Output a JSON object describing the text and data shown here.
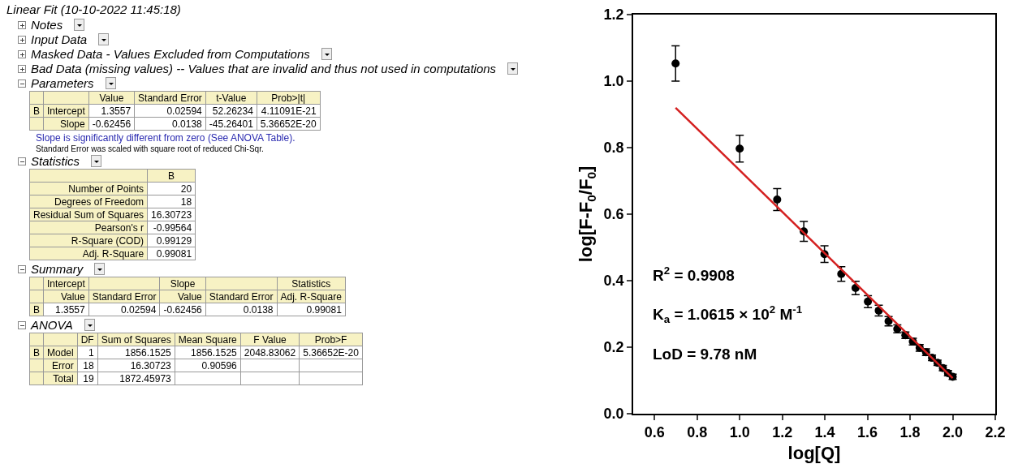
{
  "chart_data": [
    {
      "type": "other",
      "title": "Linear Fit (10-10-2022 11:45:18)",
      "annotations": [
        "Notes",
        "Input Data",
        "Masked Data - Values Excluded from Computations",
        "Bad Data (missing values) -- Values that are invalid and thus not used in computations",
        "Parameters",
        "\t\tValue\tStandard Error\tt-Value\tProb>|t|",
        "B\tIntercept\t1.3557\t0.02594\t52.26234\t4.11091E-21",
        "\tSlope\t-0.62456\t0.0138\t-45.26401\t5.36652E-20",
        "Slope is significantly different from zero (See ANOVA Table).",
        "Standard Error was scaled with square root of reduced Chi-Sqr.",
        "Statistics",
        "\tB",
        "Number of Points\t20",
        "Degrees of Freedom\t18",
        "Residual Sum of Squares\t16.30723",
        "Pearson's r\t-0.99564",
        "R-Square (COD)\t0.99129",
        "Adj. R-Square\t0.99081",
        "Summary",
        "\tIntercept\t\tSlope\t\tStatistics",
        "\tValue\tStandard Error\tValue\tStandard Error\tAdj. R-Square",
        "B\t1.3557\t0.02594\t-0.62456\t0.0138\t0.99081",
        "ANOVA",
        "\t\tDF\tSum of Squares\tMean Square\tF Value\tProb>F",
        "B\tModel\t1\t1856.1525\t1856.1525\t2048.83062\t5.36652E-20",
        "\tError\t18\t16.30723\t0.90596\t\t",
        "\tTotal\t19\t1872.45973\t\t\t"
      ]
    },
    {
      "type": "scatter",
      "xlabel": "log[Q]",
      "ylabel": "log[F-F$_{0}$/F$_{0}$]",
      "xlim": [
        0.5,
        2.2
      ],
      "xticks": [
        0.6,
        0.8,
        {
          "value": 1,
          "label": "1.0"
        },
        1.2,
        1.4,
        1.6,
        1.8,
        {
          "value": 2,
          "label": "2.0"
        },
        2.2
      ],
      "ylim": [
        0,
        1.2
      ],
      "yticks": [
        {
          "value": 0,
          "label": "0.0"
        },
        0.2,
        0.4,
        0.6,
        0.8,
        {
          "value": 1,
          "label": "1.0"
        },
        1.2
      ],
      "grid": false,
      "marker": "circle",
      "x": [
        0.699,
        1.0,
        1.176,
        1.301,
        1.398,
        1.477,
        1.544,
        1.602,
        1.653,
        1.699,
        1.74,
        1.778,
        1.813,
        1.845,
        1.875,
        1.903,
        1.929,
        1.954,
        1.978,
        2.0
      ],
      "series": [
        {
          "color": "#000000",
          "values": [
            1.053,
            0.797,
            0.644,
            0.548,
            0.48,
            0.42,
            0.378,
            0.337,
            0.31,
            0.278,
            0.255,
            0.236,
            0.217,
            0.198,
            0.185,
            0.168,
            0.153,
            0.137,
            0.122,
            0.111
          ],
          "errors": [
            0.053,
            0.04,
            0.033,
            0.03,
            0.025,
            0.022,
            0.02,
            0.018,
            0.016,
            0.014,
            0.012,
            0.01,
            0.01,
            0.01,
            0.01,
            0.008,
            0.008,
            0.008,
            0.008,
            0.008
          ]
        },
        {
          "type": "line",
          "color": "#d42020",
          "line_style": "solid",
          "x": [
            0.699,
            2.0
          ],
          "values": [
            0.92,
            0.107
          ]
        }
      ],
      "annotations": [
        "R$^{2}$ = 0.9908",
        "K$_{a}$ = 1.0615 × 10$^{2}$ M$^{-1}$",
        "LoD = 9.78 nM"
      ]
    }
  ]
}
